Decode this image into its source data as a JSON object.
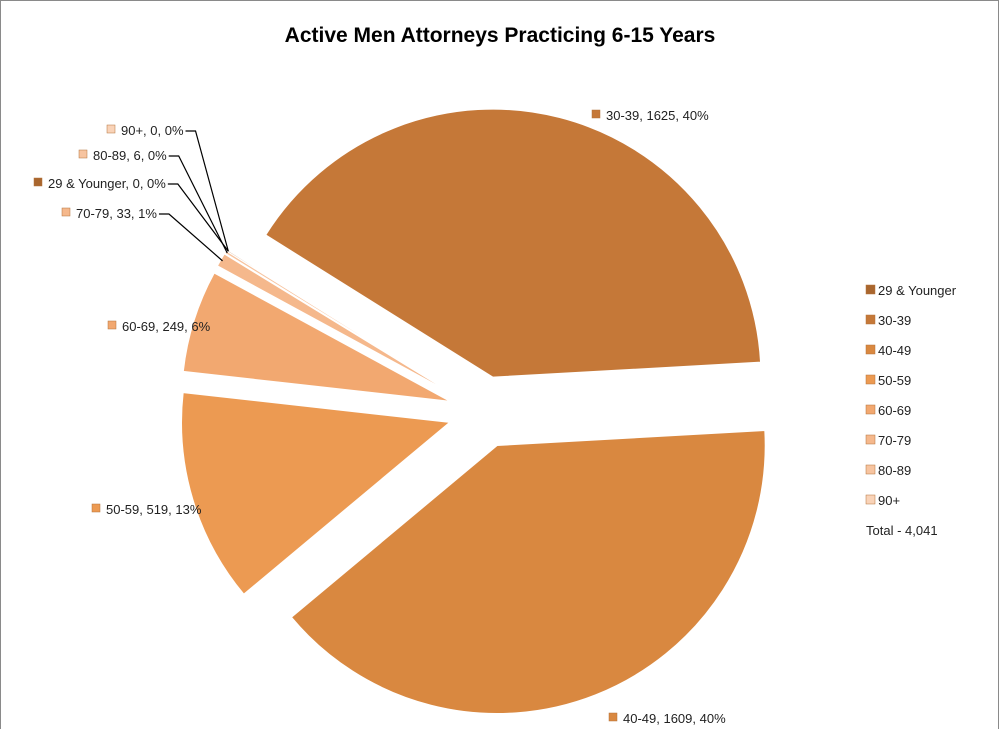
{
  "chart_data": {
    "type": "pie",
    "title": "Active Men Attorneys Practicing 6-15 Years",
    "slices": [
      {
        "label": "29 & Younger",
        "value": 0,
        "percent": "0%",
        "data_label": "29 & Younger, 0, 0%",
        "color": "#a9662e"
      },
      {
        "label": "30-39",
        "value": 1625,
        "percent": "40%",
        "data_label": "30-39, 1625, 40%",
        "color": "#c57838"
      },
      {
        "label": "40-49",
        "value": 1609,
        "percent": "40%",
        "data_label": "40-49, 1609, 40%",
        "color": "#d98840"
      },
      {
        "label": "50-59",
        "value": 519,
        "percent": "13%",
        "data_label": "50-59, 519, 13%",
        "color": "#ec9a52"
      },
      {
        "label": "60-69",
        "value": 249,
        "percent": "6%",
        "data_label": "60-69, 249, 6%",
        "color": "#f2a870"
      },
      {
        "label": "70-79",
        "value": 33,
        "percent": "1%",
        "data_label": "70-79, 33, 1%",
        "color": "#f5b88c"
      },
      {
        "label": "80-89",
        "value": 6,
        "percent": "0%",
        "data_label": "80-89, 6, 0%",
        "color": "#f7c4a0"
      },
      {
        "label": "90+",
        "value": 0,
        "percent": "0%",
        "data_label": "90+, 0, 0%",
        "color": "#f9d3b8"
      }
    ],
    "legend": {
      "position": "right",
      "items": [
        "29 & Younger",
        "30-39",
        "40-49",
        "50-59",
        "60-69",
        "70-79",
        "80-89",
        "90+"
      ],
      "total": "Total - 4,041"
    }
  }
}
